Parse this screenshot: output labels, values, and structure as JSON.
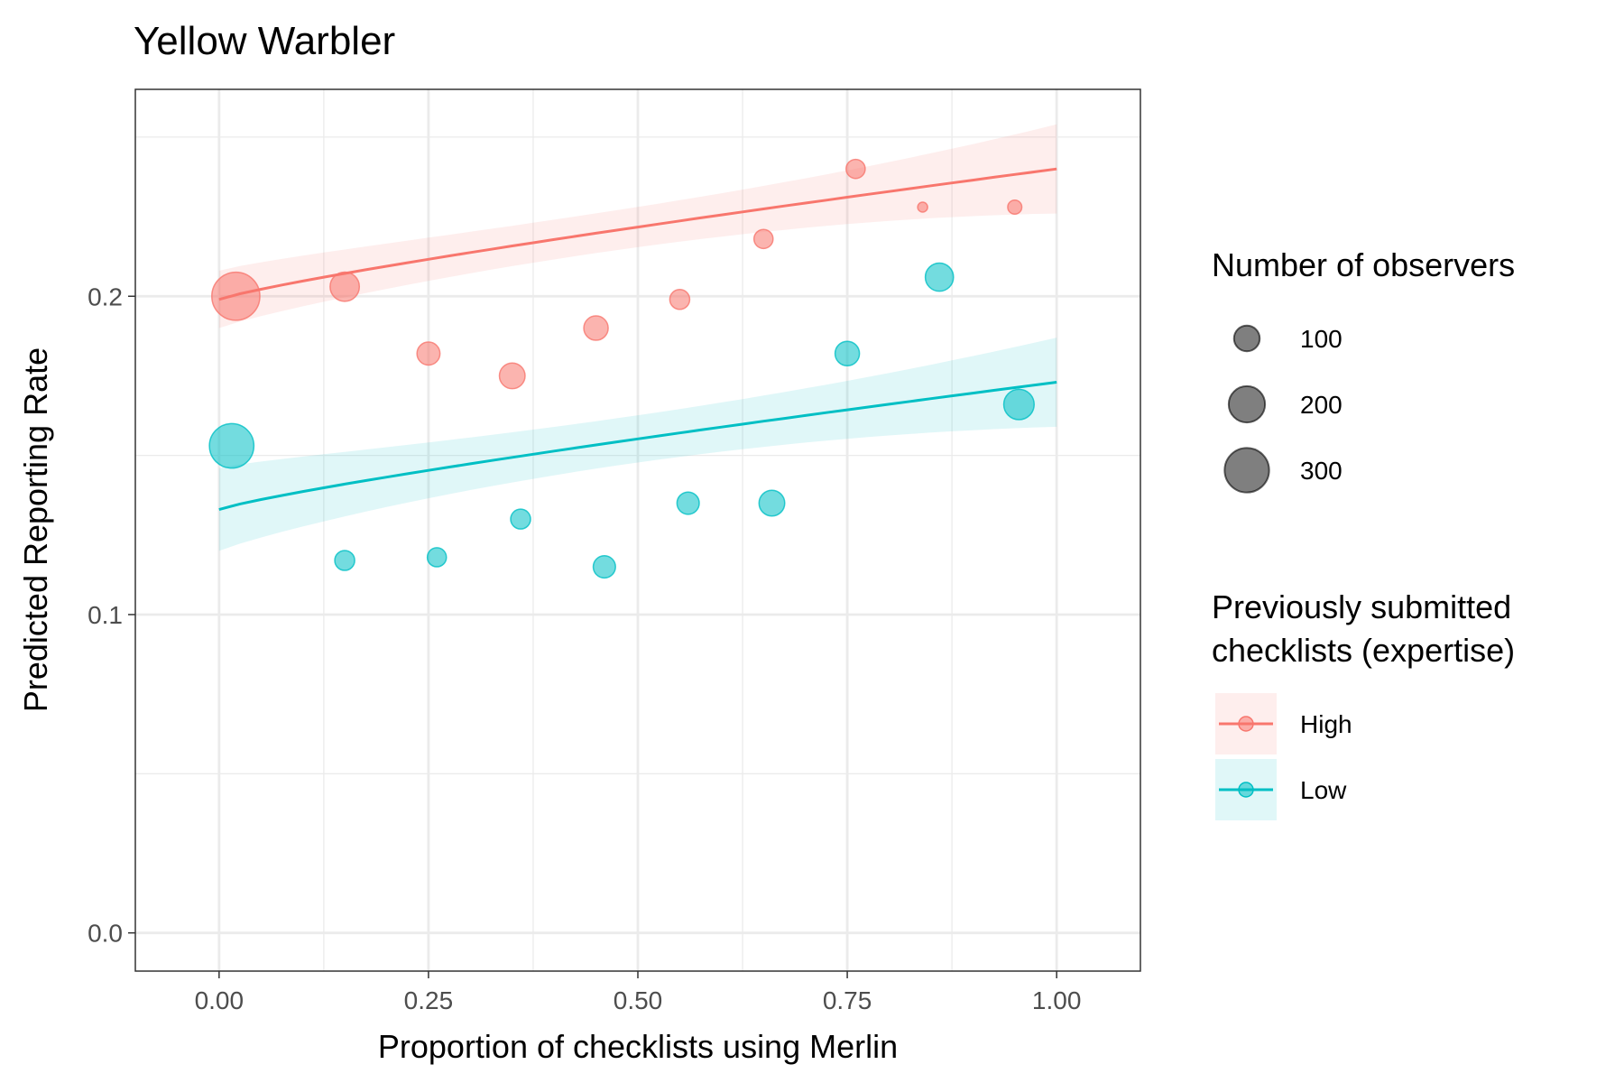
{
  "chart_data": {
    "type": "scatter",
    "title": "Yellow Warbler",
    "xlabel": "Proportion of checklists using Merlin",
    "ylabel": "Predicted Reporting Rate",
    "xlim": [
      -0.1,
      1.1
    ],
    "ylim": [
      -0.012,
      0.265
    ],
    "x_ticks": [
      0.0,
      0.25,
      0.5,
      0.75,
      1.0
    ],
    "x_tick_labels": [
      "0.00",
      "0.25",
      "0.50",
      "0.75",
      "1.00"
    ],
    "y_ticks": [
      0.0,
      0.1,
      0.2
    ],
    "y_tick_labels": [
      "0.0",
      "0.1",
      "0.2"
    ],
    "grid": true,
    "legend_placement": "right",
    "size_legend": {
      "title": "Number of observers",
      "entries": [
        {
          "label": "100",
          "value": 100
        },
        {
          "label": "200",
          "value": 200
        },
        {
          "label": "300",
          "value": 300
        }
      ]
    },
    "color_legend": {
      "title_lines": [
        "Previously submitted",
        "checklists (expertise)"
      ],
      "entries": [
        {
          "label": "High",
          "color": "#F8766D"
        },
        {
          "label": "Low",
          "color": "#00BFC4"
        }
      ]
    },
    "series": [
      {
        "name": "High",
        "color": "#F8766D",
        "points": [
          {
            "x": 0.02,
            "y": 0.2,
            "observers": 350
          },
          {
            "x": 0.15,
            "y": 0.203,
            "observers": 130
          },
          {
            "x": 0.25,
            "y": 0.182,
            "observers": 80
          },
          {
            "x": 0.35,
            "y": 0.175,
            "observers": 100
          },
          {
            "x": 0.45,
            "y": 0.19,
            "observers": 90
          },
          {
            "x": 0.55,
            "y": 0.199,
            "observers": 60
          },
          {
            "x": 0.65,
            "y": 0.218,
            "observers": 55
          },
          {
            "x": 0.76,
            "y": 0.24,
            "observers": 55
          },
          {
            "x": 0.84,
            "y": 0.228,
            "observers": 15
          },
          {
            "x": 0.95,
            "y": 0.228,
            "observers": 30
          }
        ],
        "fit": {
          "y_at_x0": 0.199,
          "y_at_x1": 0.24,
          "ci_low_x0": 0.19,
          "ci_high_x0": 0.208,
          "ci_low_x1": 0.226,
          "ci_high_x1": 0.254
        }
      },
      {
        "name": "Low",
        "color": "#00BFC4",
        "points": [
          {
            "x": 0.015,
            "y": 0.153,
            "observers": 300
          },
          {
            "x": 0.15,
            "y": 0.117,
            "observers": 60
          },
          {
            "x": 0.26,
            "y": 0.118,
            "observers": 55
          },
          {
            "x": 0.36,
            "y": 0.13,
            "observers": 60
          },
          {
            "x": 0.46,
            "y": 0.115,
            "observers": 75
          },
          {
            "x": 0.56,
            "y": 0.135,
            "observers": 75
          },
          {
            "x": 0.66,
            "y": 0.135,
            "observers": 100
          },
          {
            "x": 0.75,
            "y": 0.182,
            "observers": 90
          },
          {
            "x": 0.86,
            "y": 0.206,
            "observers": 120
          },
          {
            "x": 0.955,
            "y": 0.166,
            "observers": 140
          }
        ],
        "fit": {
          "y_at_x0": 0.133,
          "y_at_x1": 0.173,
          "ci_low_x0": 0.119,
          "ci_high_x0": 0.145,
          "ci_low_x1": 0.159,
          "ci_high_x1": 0.187
        }
      }
    ]
  }
}
